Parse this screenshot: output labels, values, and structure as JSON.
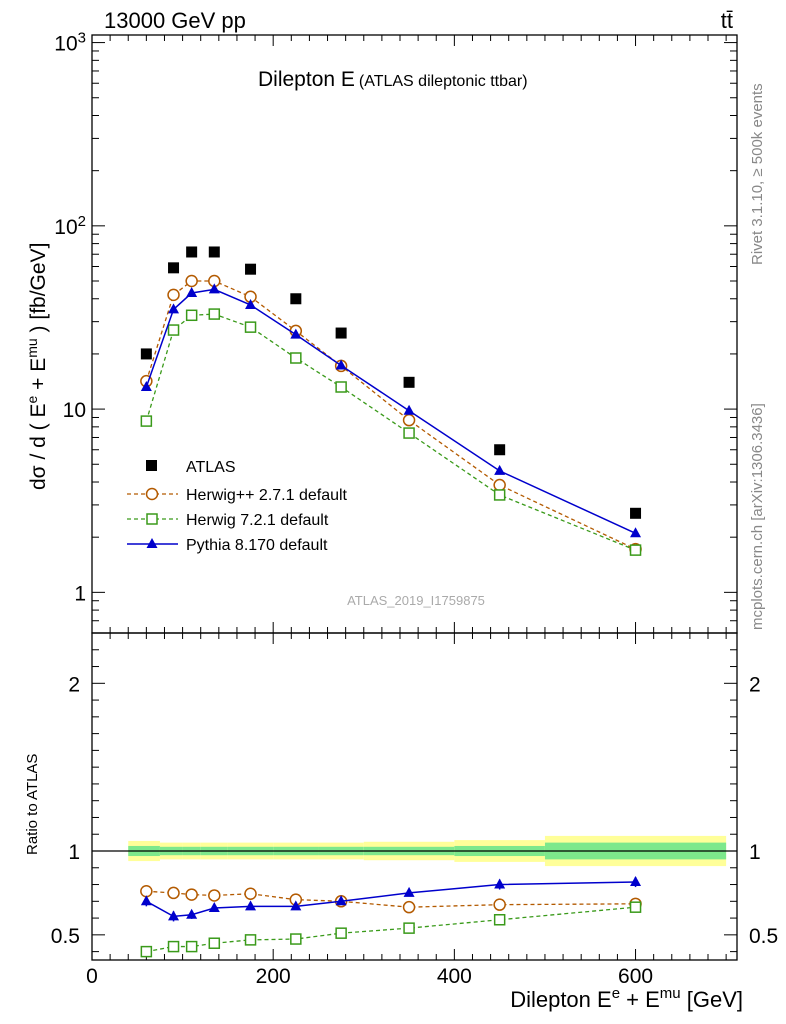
{
  "header": {
    "left": "13000 GeV pp",
    "right": "tt̄"
  },
  "side_labels": {
    "rivet": "Rivet 3.1.10, ≥ 500k events",
    "mcplots": "mcplots.cern.ch [arXiv:1306.3436]"
  },
  "main_plot": {
    "title_main": "Dilepton E",
    "title_sub": "(ATLAS dileptonic ttbar)",
    "analysis_id": "ATLAS_2019_I1759875",
    "ylabel": "dσ / d ( E^e + E^mu ) [fb/GeV]"
  },
  "ratio_plot": {
    "ylabel": "Ratio to ATLAS"
  },
  "xlabel": "Dilepton E^e + E^mu [GeV]",
  "colors": {
    "data": "#000000",
    "herwigpp": "#b35a00",
    "herwig7": "#3a9a1a",
    "pythia": "#0000cc",
    "band_inner": "#7de88c",
    "band_outer": "#ffff99"
  },
  "chart_data": {
    "type": "line",
    "x_scale": "linear",
    "xlim": [
      0,
      712
    ],
    "main": {
      "y_scale": "log",
      "ylim": [
        0.6,
        1100
      ],
      "y_ticks": [
        {
          "v": 1,
          "label": "1"
        },
        {
          "v": 10,
          "label": "10"
        },
        {
          "v": 100,
          "label": "10^2"
        },
        {
          "v": 1000,
          "label": "10^3"
        }
      ]
    },
    "ratio": {
      "y_scale": "linear",
      "ylim": [
        0.35,
        2.3
      ],
      "y_ticks": [
        0.5,
        1,
        2
      ],
      "y_tick_labels": [
        "0.5",
        "1",
        "2"
      ]
    },
    "x_ticks": [
      0,
      200,
      400,
      600
    ],
    "x_tick_labels": [
      "0",
      "200",
      "400",
      "600"
    ],
    "bins": [
      40,
      75,
      100,
      120,
      150,
      200,
      250,
      300,
      400,
      500,
      700
    ],
    "x": [
      60,
      90,
      110,
      135,
      175,
      225,
      275,
      350,
      450,
      600
    ],
    "data": {
      "name": "ATLAS",
      "values": [
        20,
        59,
        72,
        72,
        58,
        40,
        26,
        14,
        6,
        2.7
      ]
    },
    "series": [
      {
        "name": "Herwig++ 2.7.1 default",
        "key": "herwigpp",
        "marker": "open-circle",
        "values": [
          14.2,
          42,
          50,
          50,
          41,
          26.7,
          17.2,
          8.7,
          3.85,
          1.72
        ],
        "ratio": [
          0.76,
          0.75,
          0.74,
          0.735,
          0.745,
          0.71,
          0.7,
          0.665,
          0.68,
          0.685
        ]
      },
      {
        "name": "Herwig 7.2.1 default",
        "key": "herwig7",
        "marker": "open-square",
        "values": [
          8.6,
          27,
          32.5,
          33,
          28,
          19,
          13.2,
          7.4,
          3.4,
          1.7
        ],
        "ratio": [
          0.4,
          0.43,
          0.43,
          0.45,
          0.47,
          0.475,
          0.51,
          0.54,
          0.59,
          0.665
        ]
      },
      {
        "name": "Pythia 8.170 default",
        "key": "pythia",
        "marker": "filled-triangle",
        "values": [
          13.2,
          35,
          43,
          45,
          37,
          25.5,
          17.3,
          9.8,
          4.6,
          2.1
        ],
        "ratio": [
          0.7,
          0.61,
          0.62,
          0.66,
          0.67,
          0.67,
          0.7,
          0.75,
          0.8,
          0.815
        ],
        "ratio_err": [
          0.03,
          0.03,
          0.025,
          0.02,
          0.015,
          0.015,
          0.02,
          0.02,
          0.03,
          0.03
        ]
      }
    ],
    "band": {
      "inner": [
        0.03,
        0.025,
        0.025,
        0.025,
        0.025,
        0.025,
        0.025,
        0.025,
        0.03,
        0.05
      ],
      "outer": [
        0.06,
        0.05,
        0.05,
        0.05,
        0.05,
        0.05,
        0.05,
        0.055,
        0.065,
        0.09
      ]
    }
  }
}
